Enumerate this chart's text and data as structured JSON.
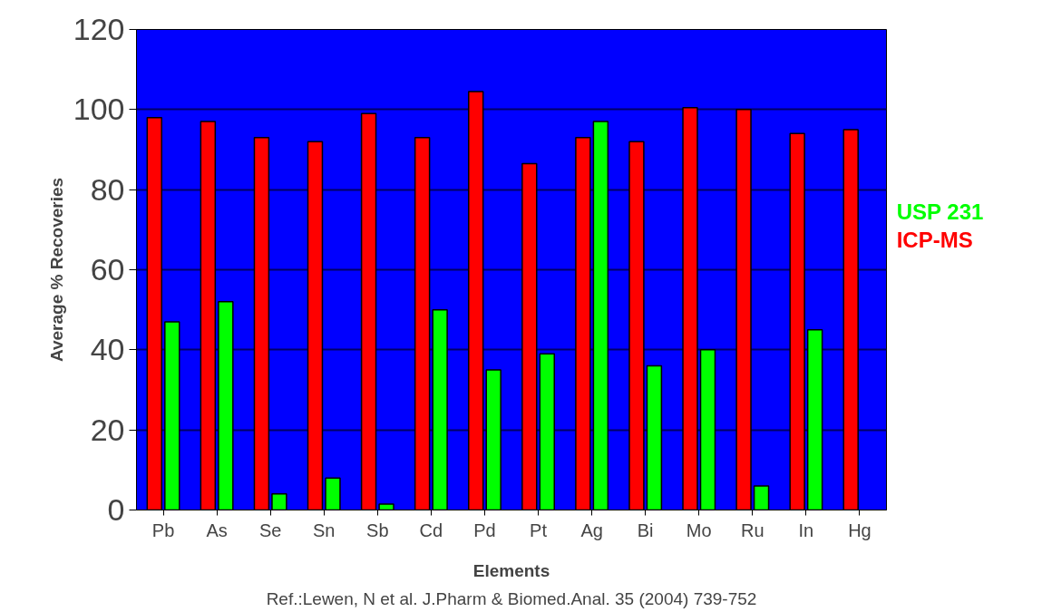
{
  "chart_data": {
    "type": "bar",
    "categories": [
      "Pb",
      "As",
      "Se",
      "Sn",
      "Sb",
      "Cd",
      "Pd",
      "Pt",
      "Ag",
      "Bi",
      "Mo",
      "Ru",
      "In",
      "Hg"
    ],
    "series": [
      {
        "name": "ICP-MS",
        "color": "#ff0000",
        "values": [
          98,
          97,
          93,
          92,
          99,
          93,
          104.5,
          86.5,
          93,
          92,
          100.5,
          100,
          94,
          95
        ]
      },
      {
        "name": "USP 231",
        "color": "#00ff00",
        "values": [
          47,
          52,
          4,
          8,
          1.5,
          50,
          35,
          39,
          97,
          36,
          40,
          6,
          45,
          null
        ]
      }
    ],
    "xlabel": "Elements",
    "ylabel": "Average % Recoveries",
    "ylim": [
      0,
      120
    ],
    "yticks": [
      0,
      20,
      40,
      60,
      80,
      100,
      120
    ],
    "grid": "y",
    "annotations": [
      "Ref.:Lewen, N et al. J.Pharm & Biomed.Anal. 35 (2004) 739-752"
    ]
  }
}
